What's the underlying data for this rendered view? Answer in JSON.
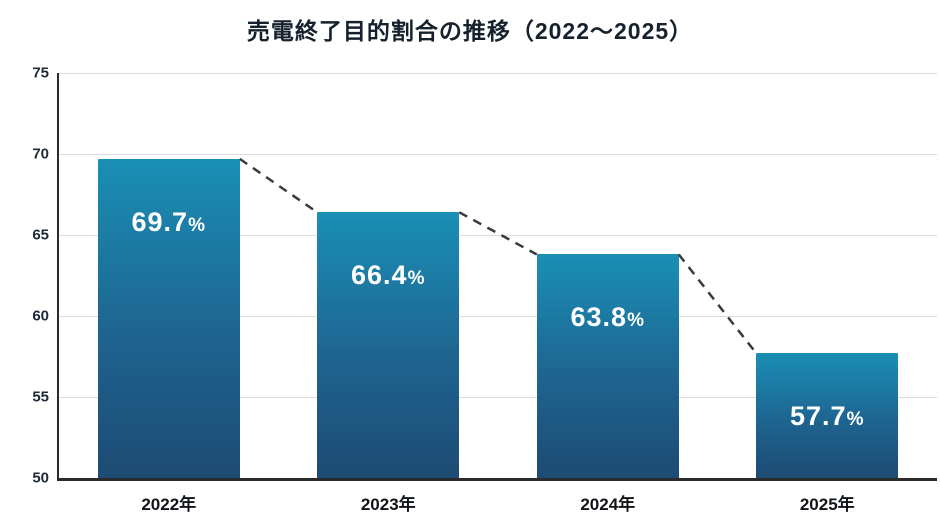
{
  "title": "売電終了目的割合の推移（2022〜2025）",
  "colors": {
    "bar_top": "#1a8fb5",
    "bar_mid": "#1e6490",
    "bar_bottom": "#1d4b73",
    "dashed_line": "#3b3b3b",
    "gridline": "#dcdcdc",
    "axis": "#2b2b2b",
    "bar_label": "#ffffff",
    "title_text": "#16212e"
  },
  "chart_data": {
    "type": "bar",
    "title": "売電終了目的割合の推移（2022〜2025）",
    "categories": [
      "2022年",
      "2023年",
      "2024年",
      "2025年"
    ],
    "values": [
      69.7,
      66.4,
      63.8,
      57.7
    ],
    "value_labels": [
      "69.7",
      "66.4",
      "63.8",
      "57.7"
    ],
    "value_suffix": "%",
    "xlabel": "",
    "ylabel": "",
    "ylim": [
      50,
      75
    ],
    "yticks": [
      50,
      55,
      60,
      65,
      70,
      75
    ],
    "grid": true,
    "legend": "none",
    "annotations": "dashed line connecting bar tops"
  }
}
